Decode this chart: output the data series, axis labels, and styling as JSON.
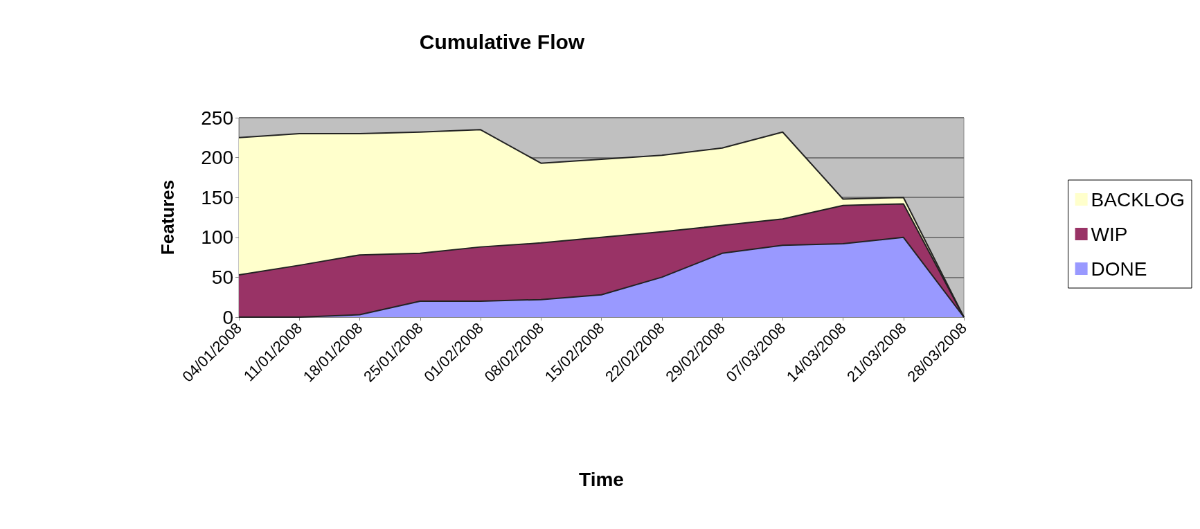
{
  "chart_data": {
    "type": "area",
    "title": "Cumulative Flow",
    "xlabel": "Time",
    "ylabel": "Features",
    "categories": [
      "04/01/2008",
      "11/01/2008",
      "18/01/2008",
      "25/01/2008",
      "01/02/2008",
      "08/02/2008",
      "15/02/2008",
      "22/02/2008",
      "29/02/2008",
      "07/03/2008",
      "14/03/2008",
      "21/03/2008",
      "28/03/2008"
    ],
    "stacked": true,
    "series": [
      {
        "name": "DONE",
        "color": "#9999ff",
        "values": [
          0,
          0,
          3,
          20,
          20,
          22,
          28,
          50,
          80,
          90,
          92,
          100,
          0
        ]
      },
      {
        "name": "WIP",
        "color": "#993366",
        "values": [
          53,
          65,
          75,
          60,
          68,
          71,
          72,
          57,
          35,
          33,
          48,
          42,
          0
        ]
      },
      {
        "name": "BACKLOG",
        "color": "#ffffcc",
        "values": [
          172,
          165,
          152,
          152,
          147,
          100,
          98,
          96,
          97,
          109,
          8,
          8,
          0
        ]
      }
    ],
    "ylim": [
      0,
      250
    ],
    "yticks": [
      0,
      50,
      100,
      150,
      200,
      250
    ],
    "grid": "y",
    "legend": "right"
  }
}
